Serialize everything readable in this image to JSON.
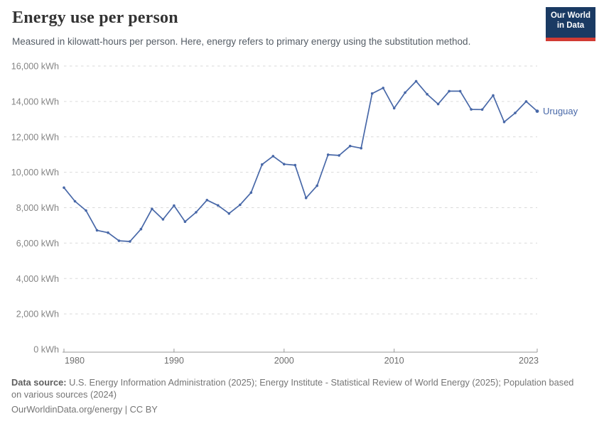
{
  "header": {
    "title": "Energy use per person",
    "subtitle": "Measured in kilowatt-hours per person. Here, energy refers to primary energy using the substitution method."
  },
  "logo": {
    "line1": "Our World",
    "line2": "in Data",
    "bg_color": "#1a3a63",
    "accent_color": "#d13b33"
  },
  "footer": {
    "source_label": "Data source:",
    "source_text": " U.S. Energy Information Administration (2025); Energy Institute - Statistical Review of World Energy (2025); Population based on various sources (2024)",
    "license_line": "OurWorldinData.org/energy | CC BY"
  },
  "chart_data": {
    "type": "line",
    "title": "Energy use per person",
    "unit": "kWh",
    "entity": "Uruguay",
    "grid": "horizontal-dashed",
    "legend": "end-of-line entity label",
    "xlim": [
      1980,
      2023
    ],
    "ylim": [
      0,
      16000
    ],
    "x": [
      1980,
      1981,
      1982,
      1983,
      1984,
      1985,
      1986,
      1987,
      1988,
      1989,
      1990,
      1991,
      1992,
      1993,
      1994,
      1995,
      1996,
      1997,
      1998,
      1999,
      2000,
      2001,
      2002,
      2003,
      2004,
      2005,
      2006,
      2007,
      2008,
      2009,
      2010,
      2011,
      2012,
      2013,
      2014,
      2015,
      2016,
      2017,
      2018,
      2019,
      2020,
      2021,
      2022,
      2023
    ],
    "series": [
      {
        "name": "Uruguay",
        "color": "#4868a8",
        "values": [
          9130,
          8360,
          7840,
          6720,
          6590,
          6130,
          6090,
          6790,
          7930,
          7340,
          8120,
          7210,
          7740,
          8430,
          8130,
          7670,
          8160,
          8850,
          10440,
          10910,
          10460,
          10400,
          8550,
          9240,
          10990,
          10950,
          11480,
          11360,
          14450,
          14760,
          13620,
          14500,
          15140,
          14410,
          13850,
          14580,
          14580,
          13550,
          13540,
          14340,
          12840,
          13350,
          14000,
          13450
        ]
      }
    ],
    "y_ticks": [
      {
        "value": 0,
        "label": "0 kWh"
      },
      {
        "value": 2000,
        "label": "2,000 kWh"
      },
      {
        "value": 4000,
        "label": "4,000 kWh"
      },
      {
        "value": 6000,
        "label": "6,000 kWh"
      },
      {
        "value": 8000,
        "label": "8,000 kWh"
      },
      {
        "value": 10000,
        "label": "10,000 kWh"
      },
      {
        "value": 12000,
        "label": "12,000 kWh"
      },
      {
        "value": 14000,
        "label": "14,000 kWh"
      },
      {
        "value": 16000,
        "label": "16,000 kWh"
      }
    ],
    "x_ticks": [
      {
        "value": 1980,
        "label": "1980"
      },
      {
        "value": 1990,
        "label": "1990"
      },
      {
        "value": 2000,
        "label": "2000"
      },
      {
        "value": 2010,
        "label": "2010"
      },
      {
        "value": 2023,
        "label": "2023"
      }
    ]
  }
}
